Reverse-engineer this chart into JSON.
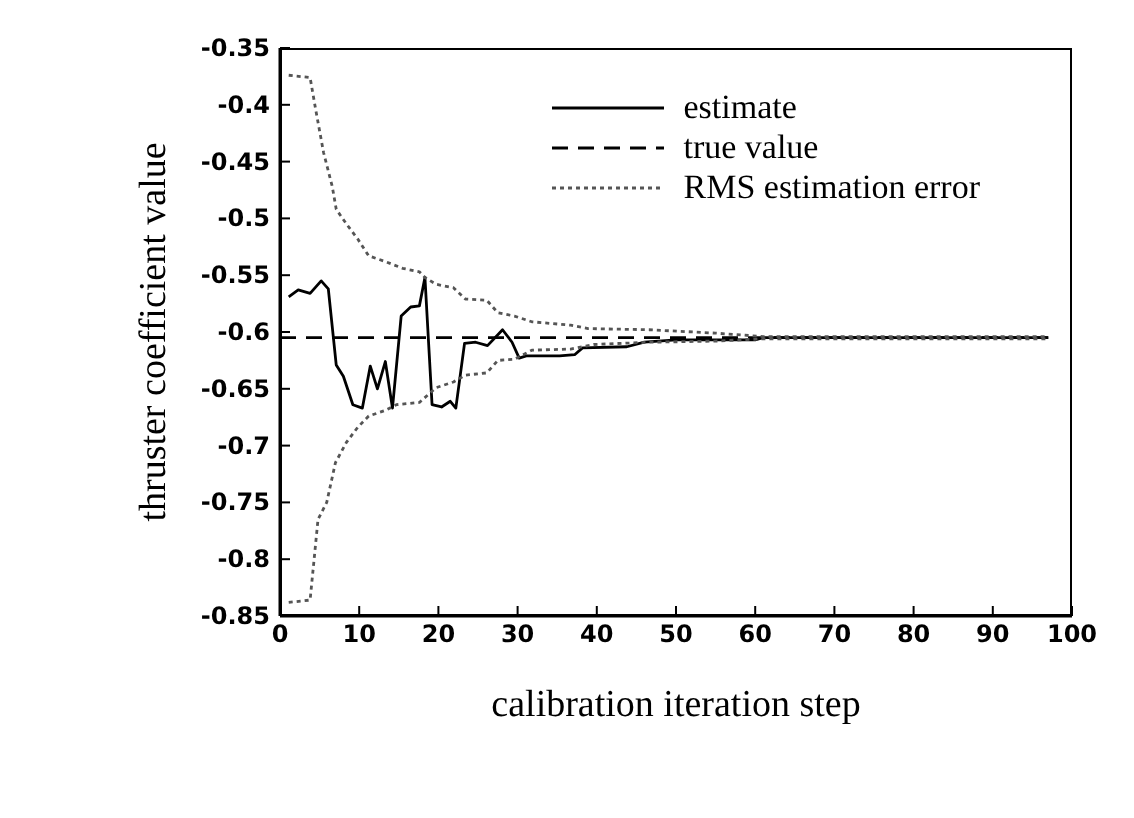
{
  "chart_data": {
    "type": "line",
    "xlabel": "calibration iteration step",
    "ylabel": "thruster coefficient value",
    "xlim": [
      0,
      100
    ],
    "xticks": [
      0,
      10,
      20,
      30,
      40,
      50,
      60,
      70,
      80,
      90,
      100
    ],
    "ylim": [
      -0.85,
      -0.35
    ],
    "yticks": [
      -0.85,
      -0.8,
      -0.75,
      -0.7,
      -0.65,
      -0.6,
      -0.55,
      -0.5,
      -0.45,
      -0.4,
      -0.35
    ],
    "grid": false,
    "legend": "top right",
    "marker": "none",
    "series": [
      {
        "name": "estimate",
        "color": "#000000",
        "line_style": "solid",
        "x": [
          1.1,
          2.3,
          3.8,
          5.2,
          6.1,
          7.1,
          8,
          9.2,
          10.4,
          11.4,
          12.3,
          13.3,
          14.2,
          15.3,
          16.5,
          17.6,
          18.3,
          19.2,
          20.4,
          21.5,
          22.2,
          23.3,
          24.7,
          26.2,
          28.1,
          29.3,
          30.2,
          31.1,
          35.3,
          37.2,
          38.2,
          43.8,
          46,
          50,
          55,
          60,
          61,
          70,
          80,
          90,
          97
        ],
        "values": [
          -0.569,
          -0.563,
          -0.566,
          -0.555,
          -0.562,
          -0.629,
          -0.639,
          -0.664,
          -0.667,
          -0.63,
          -0.65,
          -0.626,
          -0.667,
          -0.586,
          -0.578,
          -0.577,
          -0.552,
          -0.664,
          -0.666,
          -0.661,
          -0.667,
          -0.61,
          -0.609,
          -0.612,
          -0.598,
          -0.609,
          -0.623,
          -0.621,
          -0.621,
          -0.62,
          -0.614,
          -0.613,
          -0.609,
          -0.607,
          -0.607,
          -0.607,
          -0.605,
          -0.605,
          -0.605,
          -0.605,
          -0.605
        ]
      },
      {
        "name": "true value",
        "color": "#000000",
        "line_style": "dashed",
        "x": [
          0,
          97
        ],
        "values": [
          -0.605,
          -0.605
        ]
      },
      {
        "name": "RMS estimation error",
        "color": "#555555",
        "line_style": "dotted",
        "x": [
          1.1,
          3.8,
          4.5,
          5.5,
          6.6,
          7.1,
          8.4,
          9.8,
          11.2,
          13.3,
          15.5,
          17.6,
          18.3,
          19.7,
          21.9,
          23.4,
          26.1,
          27.5,
          29.6,
          31.8,
          36.7,
          38.9,
          46.6,
          55,
          61,
          70,
          80,
          90,
          97
        ],
        "values": [
          -0.374,
          -0.376,
          -0.404,
          -0.442,
          -0.472,
          -0.492,
          -0.505,
          -0.518,
          -0.533,
          -0.538,
          -0.544,
          -0.547,
          -0.552,
          -0.558,
          -0.561,
          -0.571,
          -0.572,
          -0.583,
          -0.586,
          -0.591,
          -0.594,
          -0.597,
          -0.598,
          -0.601,
          -0.604,
          -0.604,
          -0.604,
          -0.604,
          -0.604
        ]
      },
      {
        "color": "#555555",
        "line_style": "dotted",
        "x": [
          1.1,
          3.8,
          4.8,
          5.9,
          7,
          8.4,
          9.8,
          11.2,
          13.3,
          14.7,
          17.6,
          19.7,
          21.9,
          23.4,
          26.1,
          27.5,
          29.6,
          31.8,
          36.7,
          39.6,
          46.6,
          55,
          61,
          70,
          80,
          90,
          97
        ],
        "values": [
          -0.838,
          -0.836,
          -0.765,
          -0.75,
          -0.715,
          -0.697,
          -0.684,
          -0.674,
          -0.669,
          -0.664,
          -0.662,
          -0.649,
          -0.644,
          -0.638,
          -0.636,
          -0.625,
          -0.624,
          -0.616,
          -0.615,
          -0.611,
          -0.609,
          -0.608,
          -0.606,
          -0.606,
          -0.606,
          -0.606,
          -0.606
        ]
      }
    ]
  }
}
